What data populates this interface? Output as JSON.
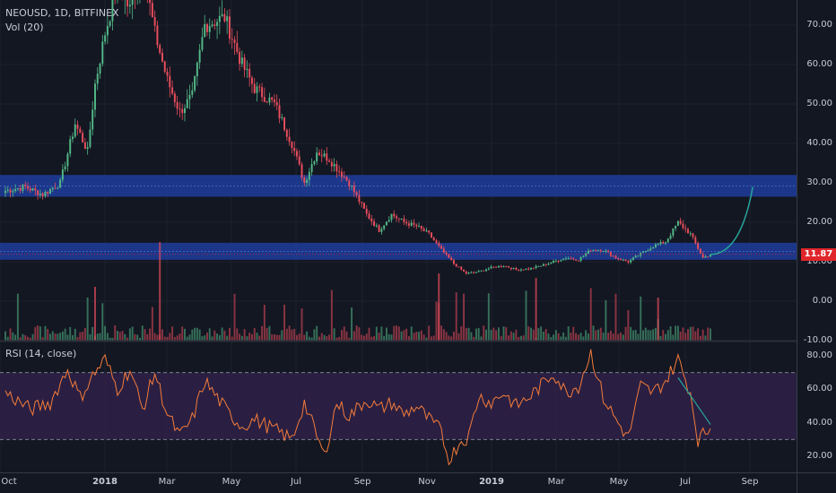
{
  "header": {
    "symbol_line": "NEOUSD, 1D, BITFINEX",
    "volume_label": "Vol (20)",
    "rsi_label": "RSI (14, close)"
  },
  "last_price": "11.87",
  "colors": {
    "background": "#131722",
    "up": "#53b987",
    "down": "#eb4d5c",
    "zone": "#1e3d9c",
    "rsi": "#f57b3a",
    "rsi_band": "#2d2046",
    "trend": "#26a69a",
    "last_price": "#e0262a"
  },
  "chart_data": [
    {
      "type": "candlestick",
      "title": "NEOUSD, 1D, BITFINEX",
      "ylim": [
        -10,
        76
      ],
      "y_ticks": [
        "70.00",
        "60.00",
        "50.00",
        "40.00",
        "30.00",
        "20.00",
        "10.00",
        "0.00",
        "-10.00"
      ],
      "x_ticks": [
        "Oct",
        "2018",
        "Mar",
        "May",
        "Jul",
        "Sep",
        "Nov",
        "2019",
        "Mar",
        "May",
        "Jul",
        "Sep"
      ],
      "close_anchors": [
        [
          0,
          28
        ],
        [
          8,
          29
        ],
        [
          15,
          27
        ],
        [
          22,
          30
        ],
        [
          28,
          45
        ],
        [
          33,
          38
        ],
        [
          36,
          55
        ],
        [
          40,
          68
        ],
        [
          45,
          80
        ],
        [
          50,
          74
        ],
        [
          55,
          85
        ],
        [
          60,
          68
        ],
        [
          65,
          56
        ],
        [
          70,
          48
        ],
        [
          75,
          52
        ],
        [
          80,
          70
        ],
        [
          88,
          72
        ],
        [
          95,
          60
        ],
        [
          100,
          54
        ],
        [
          108,
          50
        ],
        [
          115,
          40
        ],
        [
          120,
          30
        ],
        [
          125,
          38
        ],
        [
          130,
          36
        ],
        [
          138,
          30
        ],
        [
          145,
          22
        ],
        [
          150,
          18
        ],
        [
          155,
          22
        ],
        [
          160,
          20
        ],
        [
          165,
          19
        ],
        [
          170,
          17
        ],
        [
          175,
          13
        ],
        [
          180,
          9.5
        ],
        [
          185,
          7
        ],
        [
          190,
          7.5
        ],
        [
          195,
          8.5
        ],
        [
          200,
          9
        ],
        [
          205,
          8
        ],
        [
          210,
          8.2
        ],
        [
          215,
          9
        ],
        [
          220,
          10
        ],
        [
          225,
          11
        ],
        [
          230,
          10.5
        ],
        [
          235,
          13
        ],
        [
          240,
          13
        ],
        [
          245,
          11
        ],
        [
          250,
          10
        ],
        [
          255,
          12
        ],
        [
          260,
          14
        ],
        [
          265,
          15
        ],
        [
          270,
          20
        ],
        [
          275,
          17
        ],
        [
          280,
          11
        ],
        [
          283,
          11.87
        ]
      ],
      "zones": [
        [
          26.5,
          32
        ],
        [
          10.5,
          14.8
        ]
      ],
      "projection": {
        "start": [
          283,
          11.87
        ],
        "end": [
          300,
          29
        ]
      },
      "last_value": 11.87
    },
    {
      "type": "bar",
      "title": "Vol (20)",
      "series_name": "volume"
    },
    {
      "type": "line",
      "title": "RSI (14, close)",
      "ylim": [
        14,
        86
      ],
      "y_ticks": [
        "80.00",
        "60.00",
        "40.00",
        "20.00"
      ],
      "bands": [
        30,
        70
      ],
      "rsi_anchors": [
        [
          0,
          58
        ],
        [
          10,
          48
        ],
        [
          18,
          52
        ],
        [
          25,
          72
        ],
        [
          30,
          55
        ],
        [
          35,
          68
        ],
        [
          40,
          78
        ],
        [
          45,
          60
        ],
        [
          50,
          72
        ],
        [
          55,
          48
        ],
        [
          60,
          70
        ],
        [
          65,
          45
        ],
        [
          70,
          32
        ],
        [
          75,
          42
        ],
        [
          80,
          65
        ],
        [
          85,
          55
        ],
        [
          90,
          45
        ],
        [
          95,
          38
        ],
        [
          100,
          42
        ],
        [
          108,
          36
        ],
        [
          115,
          30
        ],
        [
          120,
          52
        ],
        [
          125,
          32
        ],
        [
          128,
          20
        ],
        [
          133,
          52
        ],
        [
          138,
          44
        ],
        [
          145,
          54
        ],
        [
          150,
          48
        ],
        [
          155,
          52
        ],
        [
          160,
          45
        ],
        [
          165,
          50
        ],
        [
          170,
          42
        ],
        [
          175,
          35
        ],
        [
          178,
          17
        ],
        [
          182,
          28
        ],
        [
          186,
          32
        ],
        [
          190,
          56
        ],
        [
          195,
          52
        ],
        [
          200,
          58
        ],
        [
          205,
          50
        ],
        [
          210,
          55
        ],
        [
          215,
          62
        ],
        [
          220,
          70
        ],
        [
          225,
          58
        ],
        [
          230,
          62
        ],
        [
          235,
          82
        ],
        [
          240,
          55
        ],
        [
          245,
          42
        ],
        [
          250,
          31
        ],
        [
          255,
          62
        ],
        [
          260,
          58
        ],
        [
          265,
          65
        ],
        [
          270,
          78
        ],
        [
          275,
          58
        ],
        [
          278,
          30
        ],
        [
          283,
          37
        ]
      ],
      "trendline": {
        "start": [
          270,
          67
        ],
        "end": [
          283,
          39
        ]
      }
    }
  ]
}
